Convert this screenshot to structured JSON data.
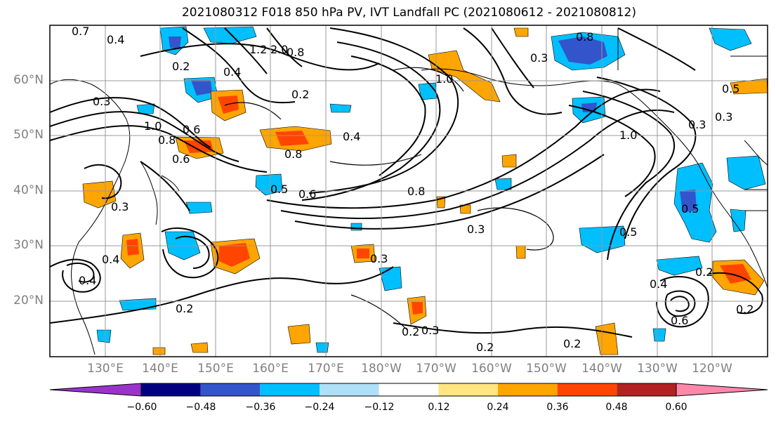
{
  "title": "2021080312 F018 850 hPa PV, IVT Landfall PC (2021080612 - 2021080812)",
  "lat_labels": [
    "60°N",
    "50°N",
    "40°N",
    "30°N",
    "20°N"
  ],
  "lon_labels": [
    "130°E",
    "140°E",
    "150°E",
    "160°E",
    "170°E",
    "180°W",
    "170°W",
    "160°W",
    "150°W",
    "140°W",
    "130°W",
    "120°W"
  ],
  "contour_labels": [
    "0.7",
    "0.4",
    "1.2",
    "2.0",
    "0.8",
    "0.2",
    "0.4",
    "0.3",
    "0.6",
    "0.8",
    "0.6",
    "0.3",
    "1.0",
    "0.4",
    "0.2",
    "0.8",
    "0.5",
    "1.0",
    "1.0",
    "0.3",
    "0.5",
    "0.8",
    "0.6",
    "0.3",
    "0.3",
    "0.8",
    "0.3",
    "0.5",
    "0.3",
    "0.4",
    "0.2",
    "0.2",
    "0.2",
    "0.3",
    "0.2",
    "0.2",
    "0.6",
    "0.2",
    "0.4",
    "0.5",
    "0.4"
  ],
  "colorbar": {
    "colors": [
      "#9933cc",
      "#000080",
      "#3355cc",
      "#00bfff",
      "#aee0f8",
      "#ffffff",
      "#ffe680",
      "#ffa500",
      "#ff4500",
      "#b22222",
      "#ff88aa"
    ],
    "tick_labels": [
      "−0.60",
      "−0.48",
      "−0.36",
      "−0.24",
      "−0.12",
      "0.12",
      "0.24",
      "0.36",
      "0.48",
      "0.60"
    ]
  }
}
